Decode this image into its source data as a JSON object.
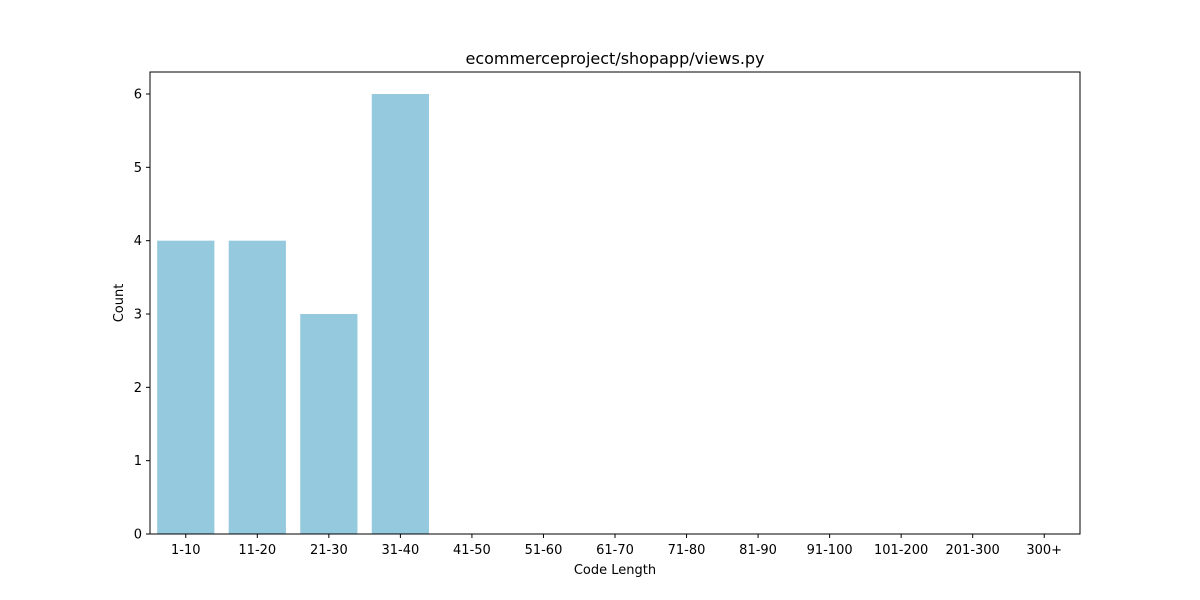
{
  "chart_data": {
    "type": "bar",
    "title": "ecommerceproject/shopapp/views.py",
    "xlabel": "Code Length",
    "ylabel": "Count",
    "categories": [
      "1-10",
      "11-20",
      "21-30",
      "31-40",
      "41-50",
      "51-60",
      "61-70",
      "71-80",
      "81-90",
      "91-100",
      "101-200",
      "201-300",
      "300+"
    ],
    "values": [
      4,
      4,
      3,
      6,
      0,
      0,
      0,
      0,
      0,
      0,
      0,
      0,
      0
    ],
    "ylim": [
      0,
      6.3
    ],
    "yticks": [
      0,
      1,
      2,
      3,
      4,
      5,
      6
    ],
    "grid": false,
    "bar_color": "#95c9de"
  }
}
